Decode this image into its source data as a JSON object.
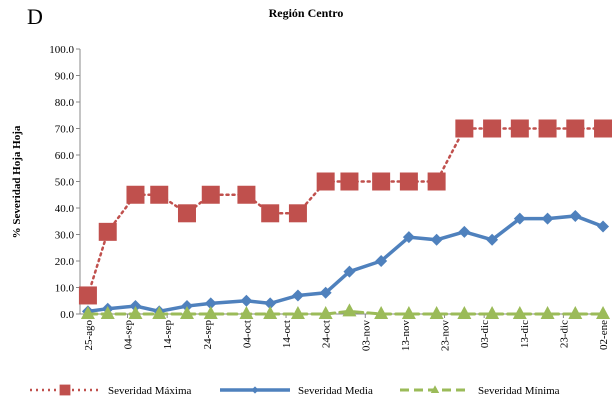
{
  "chart_data": {
    "type": "line",
    "panel_label": "D",
    "title": "Región Centro",
    "y_label": "% Severidad Hoja Hoja",
    "x": [
      0,
      5,
      12,
      18,
      25,
      31,
      40,
      46,
      53,
      60,
      66,
      74,
      81,
      88,
      95,
      102,
      109,
      116,
      123,
      130
    ],
    "xlim": [
      -2,
      131
    ],
    "xticks": [
      {
        "value": 0,
        "label": "25-ago"
      },
      {
        "value": 10,
        "label": "04-sep"
      },
      {
        "value": 20,
        "label": "14-sep"
      },
      {
        "value": 30,
        "label": "24-sep"
      },
      {
        "value": 40,
        "label": "04-oct"
      },
      {
        "value": 50,
        "label": "14-oct"
      },
      {
        "value": 60,
        "label": "24-oct"
      },
      {
        "value": 70,
        "label": "03-nov"
      },
      {
        "value": 80,
        "label": "13-nov"
      },
      {
        "value": 90,
        "label": "23-nov"
      },
      {
        "value": 100,
        "label": "03-dic"
      },
      {
        "value": 110,
        "label": "13-dic"
      },
      {
        "value": 120,
        "label": "23-dic"
      },
      {
        "value": 130,
        "label": "02-ene"
      }
    ],
    "ylim": [
      0,
      100
    ],
    "yticks": [
      {
        "value": 0,
        "label": "0.0"
      },
      {
        "value": 10,
        "label": "10.0"
      },
      {
        "value": 20,
        "label": "20.0"
      },
      {
        "value": 30,
        "label": "30.0"
      },
      {
        "value": 40,
        "label": "40.0"
      },
      {
        "value": 50,
        "label": "50.0"
      },
      {
        "value": 60,
        "label": "60.0"
      },
      {
        "value": 70,
        "label": "70.0"
      },
      {
        "value": 80,
        "label": "80.0"
      },
      {
        "value": 90,
        "label": "90.0"
      },
      {
        "value": 100,
        "label": "100.0"
      }
    ],
    "grid": false,
    "legend": "bottom",
    "series": [
      {
        "name": "Severidad Máxima",
        "color": "#c0504d",
        "line": "dotted",
        "marker": "square",
        "values": [
          7,
          31,
          45,
          45,
          38,
          45,
          45,
          38,
          38,
          50,
          50,
          50,
          50,
          50,
          70,
          70,
          70,
          70,
          70,
          70
        ]
      },
      {
        "name": "Severidad Media",
        "color": "#4f81bd",
        "line": "solid",
        "marker": "diamond",
        "values": [
          1,
          2,
          3,
          1,
          3,
          4,
          5,
          4,
          7,
          8,
          16,
          20,
          29,
          28,
          31,
          28,
          36,
          36,
          37,
          33
        ]
      },
      {
        "name": "Severidad Mínima",
        "color": "#9bbb59",
        "line": "dashed",
        "marker": "triangle",
        "values": [
          0,
          0,
          0,
          0,
          0,
          0,
          0,
          0,
          0,
          0,
          1,
          0,
          0,
          0,
          0,
          0,
          0,
          0,
          0,
          0
        ]
      }
    ]
  }
}
